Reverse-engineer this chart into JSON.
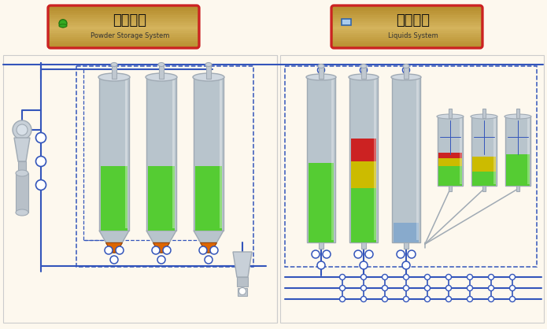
{
  "bg_color": "#fdf8ee",
  "title_left_zh": "粉罐系统",
  "title_left_en": "Powder Storage System",
  "title_right_zh": "流体系统",
  "title_right_en": "Liquids System",
  "title_box_border": "#cc2222",
  "blue": "#3355bb",
  "gray_silo": "#b8c4cc",
  "gray_mid": "#a0aab4",
  "gray_dark": "#707880",
  "green_fill": "#55cc33",
  "red_fill": "#cc2222",
  "yellow_fill": "#ccbb00",
  "orange_fill": "#dd6600",
  "blue_fill": "#88aacc"
}
